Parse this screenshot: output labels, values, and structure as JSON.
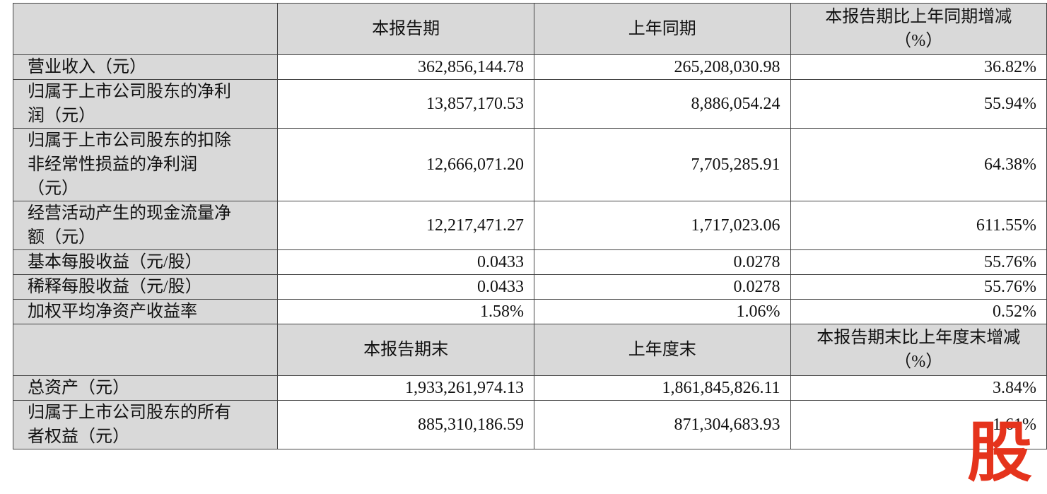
{
  "table": {
    "header1": [
      "本报告期",
      "上年同期",
      "本报告期比上年同期增减",
      "（%）"
    ],
    "rows": [
      [
        [
          "营业收入（元）"
        ],
        "362,856,144.78",
        "265,208,030.98",
        "36.82%"
      ],
      [
        [
          "归属于上市公司股东的净利",
          "润（元）"
        ],
        "13,857,170.53",
        "8,886,054.24",
        "55.94%"
      ],
      [
        [
          "归属于上市公司股东的扣除",
          "非经常性损益的净利润",
          "（元）"
        ],
        "12,666,071.20",
        "7,705,285.91",
        "64.38%"
      ],
      [
        [
          "经营活动产生的现金流量净",
          "额（元）"
        ],
        "12,217,471.27",
        "1,717,023.06",
        "611.55%"
      ],
      [
        [
          "基本每股收益（元/股）"
        ],
        "0.0433",
        "0.0278",
        "55.76%"
      ],
      [
        [
          "稀释每股收益（元/股）"
        ],
        "0.0433",
        "0.0278",
        "55.76%"
      ],
      [
        [
          "加权平均净资产收益率"
        ],
        "1.58%",
        "1.06%",
        "0.52%"
      ]
    ],
    "header2": [
      "本报告期末",
      "上年度末",
      "本报告期末比上年度末增减",
      "（%）"
    ],
    "rows2": [
      [
        [
          "总资产（元）"
        ],
        "1,933,261,974.13",
        "1,861,845,826.11",
        "3.84%"
      ],
      [
        [
          "归属于上市公司股东的所有",
          "者权益（元）"
        ],
        "885,310,186.59",
        "871,304,683.93",
        "1.61%"
      ]
    ]
  },
  "watermark": "股"
}
